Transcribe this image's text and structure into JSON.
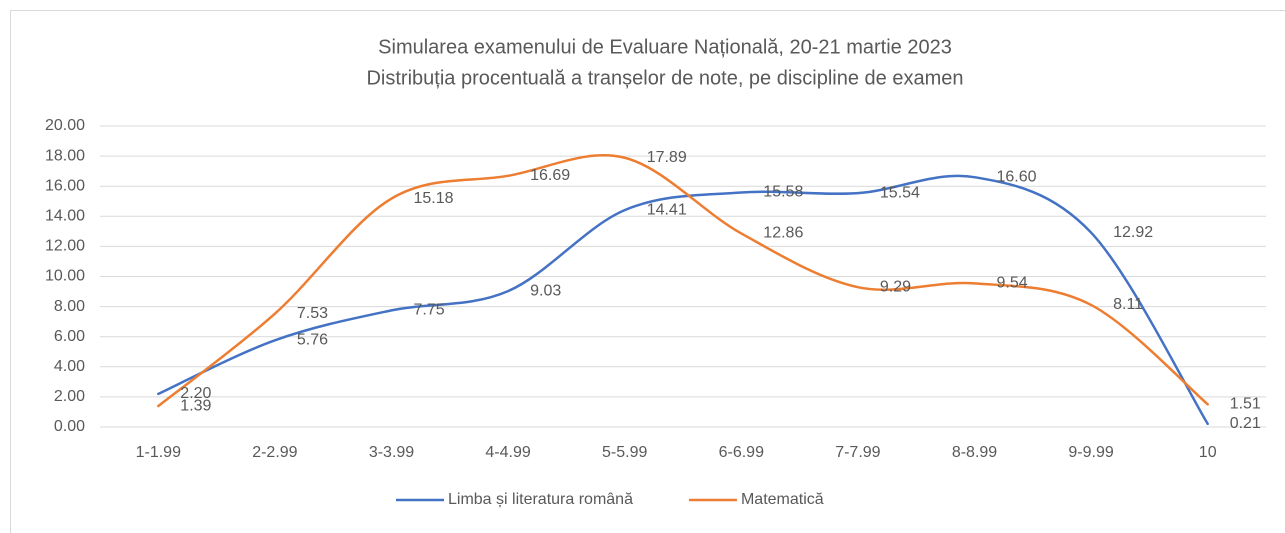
{
  "chart_data": {
    "type": "line",
    "title": "Simularea examenului de Evaluare Națională, 20-21 martie 2023",
    "subtitle": "Distribuția procentuală a tranșelor de note, pe discipline de examen",
    "categories": [
      "1-1.99",
      "2-2.99",
      "3-3.99",
      "4-4.99",
      "5-5.99",
      "6-6.99",
      "7-7.99",
      "8-8.99",
      "9-9.99",
      "10"
    ],
    "series": [
      {
        "name": "Limba și literatura română",
        "color": "#4472c4",
        "values": [
          2.2,
          5.76,
          7.75,
          9.03,
          14.41,
          15.58,
          15.54,
          16.6,
          12.92,
          0.21
        ],
        "value_labels": [
          "2.20",
          "5.76",
          "7.75",
          "9.03",
          "14.41",
          "15.58",
          "15.54",
          "16.60",
          "12.92",
          "0.21"
        ]
      },
      {
        "name": "Matematică",
        "color": "#ed7d31",
        "values": [
          1.39,
          7.53,
          15.18,
          16.69,
          17.89,
          12.86,
          9.29,
          9.54,
          8.11,
          1.51
        ],
        "value_labels": [
          "1.39",
          "7.53",
          "15.18",
          "16.69",
          "17.89",
          "12.86",
          "9.29",
          "9.54",
          "8.11",
          "1.51"
        ]
      }
    ],
    "ylim": [
      0,
      20
    ],
    "yticks": [
      {
        "value": 0,
        "label": "0.00"
      },
      {
        "value": 2,
        "label": "2.00"
      },
      {
        "value": 4,
        "label": "4.00"
      },
      {
        "value": 6,
        "label": "6.00"
      },
      {
        "value": 8,
        "label": "8.00"
      },
      {
        "value": 10,
        "label": "10.00"
      },
      {
        "value": 12,
        "label": "12.00"
      },
      {
        "value": 14,
        "label": "14.00"
      },
      {
        "value": 16,
        "label": "16.00"
      },
      {
        "value": 18,
        "label": "18.00"
      },
      {
        "value": 20,
        "label": "20.00"
      }
    ],
    "grid": true,
    "smooth": true,
    "legend": "bottom"
  }
}
